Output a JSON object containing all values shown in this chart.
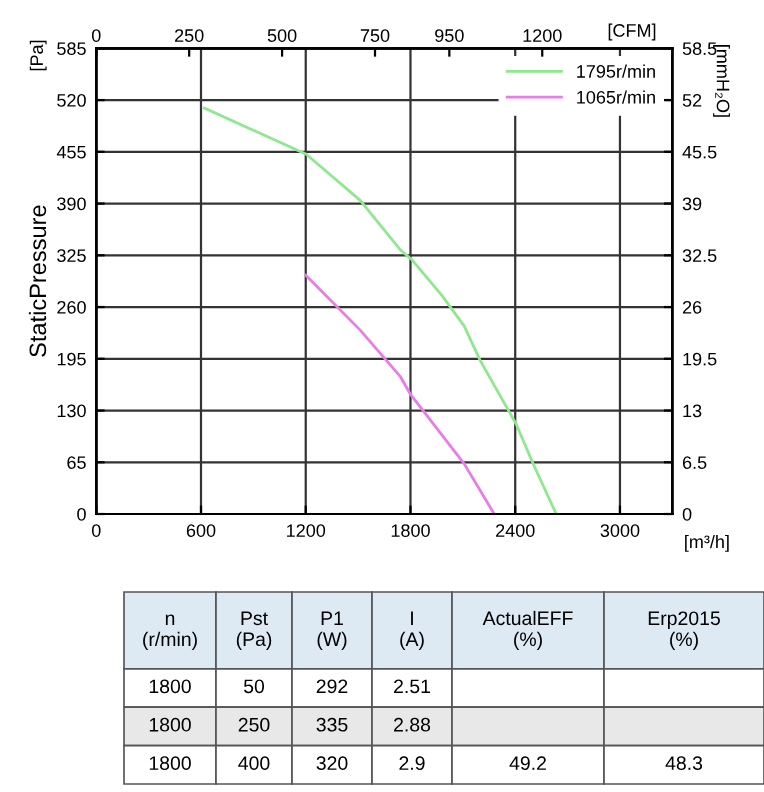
{
  "chart_data": {
    "type": "line",
    "xlabel": "[m³/h]",
    "x2label": "[CFM]",
    "ylabel": "StaticPressure",
    "y2label": "[mmH₂O]",
    "xlim": [
      0,
      3300
    ],
    "xticks": [
      0,
      600,
      1200,
      1800,
      2400,
      3000
    ],
    "x2lim": [
      0,
      1550
    ],
    "x2ticks": [
      0,
      250,
      500,
      750,
      950,
      1200
    ],
    "ylim": [
      0,
      585
    ],
    "yticks": [
      0,
      65,
      130,
      195,
      260,
      325,
      390,
      455,
      520,
      585
    ],
    "y2lim": [
      0,
      58.5
    ],
    "y2ticks": [
      0,
      6.5,
      13,
      19.5,
      26,
      32.5,
      39,
      45.5,
      52,
      58.5
    ],
    "grid": true,
    "legend": "top right",
    "marker": "none",
    "line_style": "solid",
    "series": [
      {
        "name": "1795r/min",
        "color": "#8fe88f",
        "x": [
          619,
          1203,
          1512,
          1741,
          1810,
          1982,
          2108,
          2199,
          2405,
          2509,
          2635
        ],
        "values": [
          510,
          452,
          394,
          332,
          319,
          274,
          236,
          193,
          113,
          60,
          0
        ]
      },
      {
        "name": "1065r/min",
        "color": "#e87de8",
        "x": [
          1200,
          1512,
          1741,
          1798,
          2108,
          2280
        ],
        "values": [
          300,
          231,
          173,
          151,
          63,
          0
        ]
      }
    ],
    "annotations": [
      "[Pa]",
      "n\n(r/min)",
      "Pst\n(Pa)",
      "P1\n(W)",
      "I\n(A)",
      "ActualEFF\n(%)",
      "Erp2015\n(%)",
      "1800",
      "50",
      "292",
      "2.51",
      null,
      null,
      "1800",
      "250",
      "335",
      "2.88",
      null,
      null,
      "1800",
      "400",
      "320",
      "2.9",
      "49.2",
      "48.3"
    ]
  }
}
